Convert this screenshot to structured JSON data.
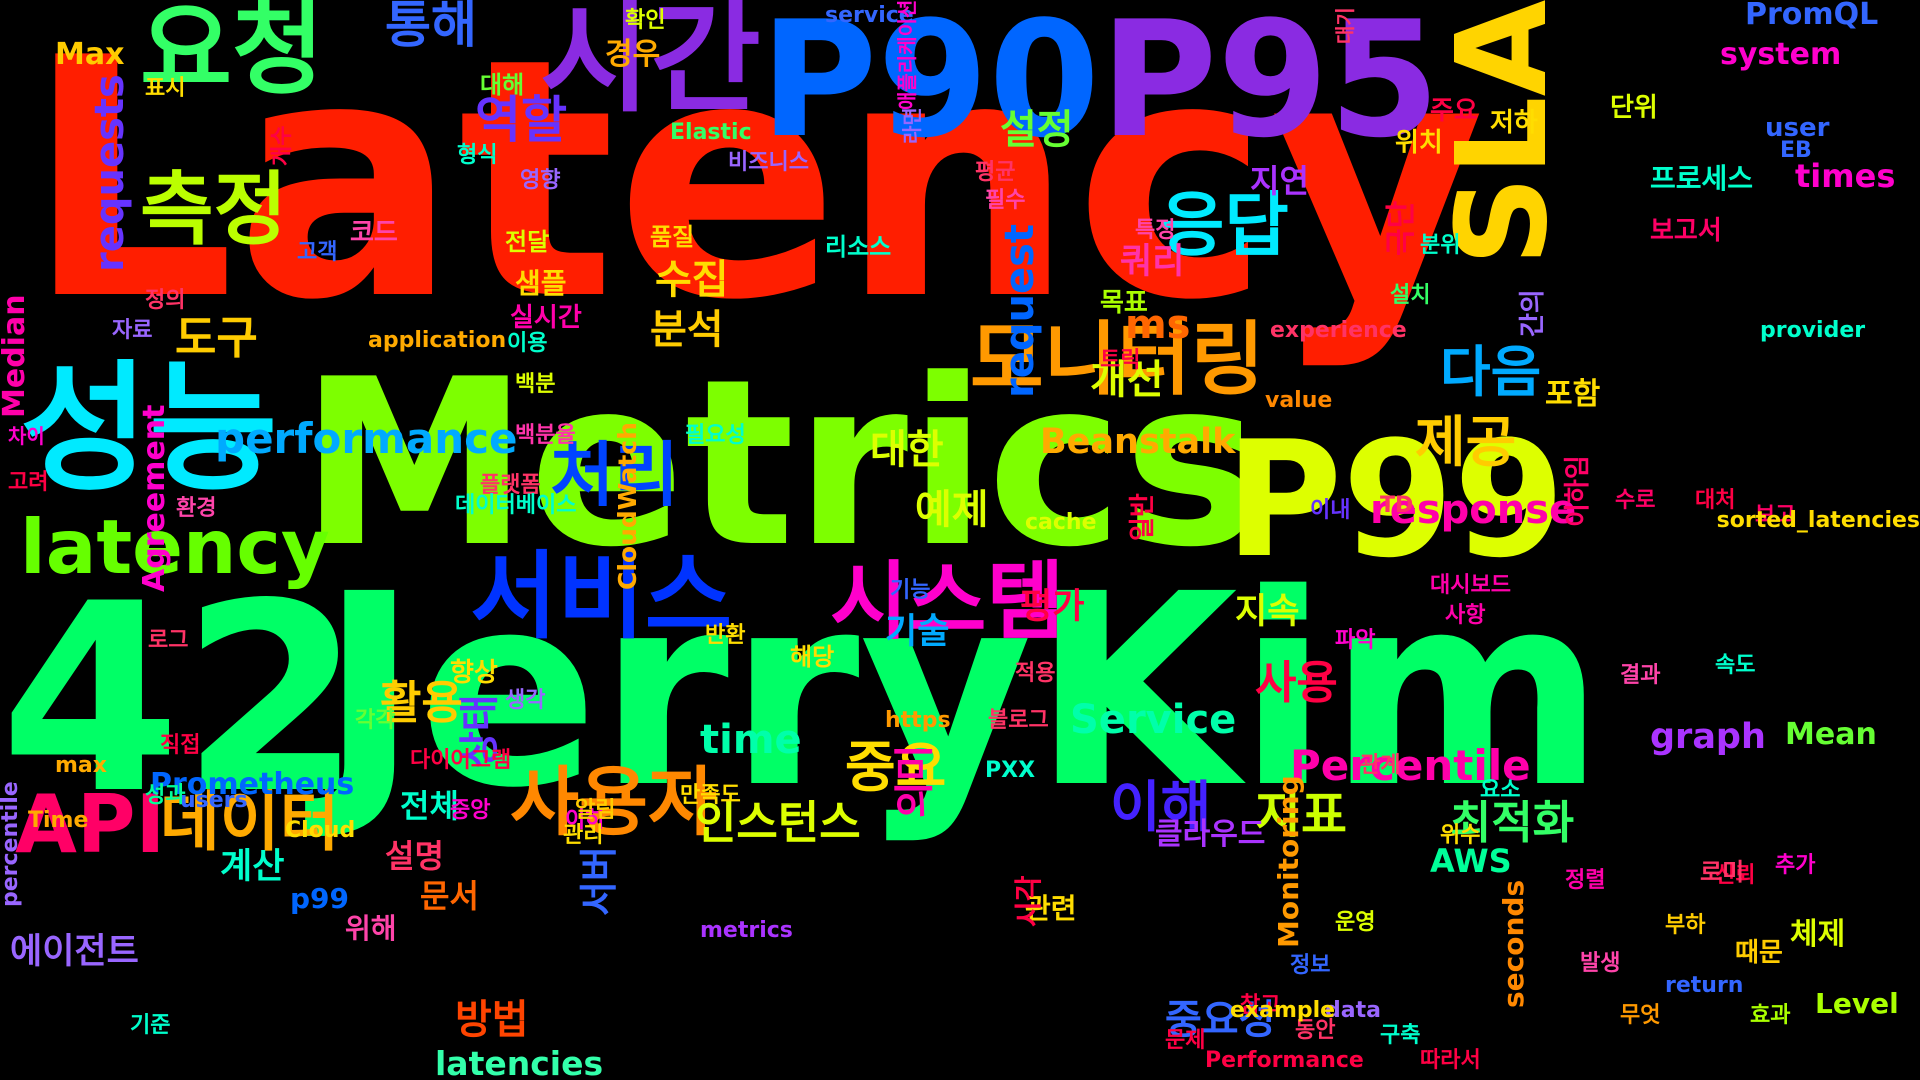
{
  "words": [
    {
      "text": "Latency",
      "color": "#ff1e00"
    },
    {
      "text": "Metrics",
      "color": "#7dff00"
    },
    {
      "text": "42",
      "color": "#00ff66"
    },
    {
      "text": "JerryKim",
      "color": "#00ff66"
    },
    {
      "text": "P90",
      "color": "#0066ff"
    },
    {
      "text": "P95",
      "color": "#8a2be2"
    },
    {
      "text": "P99",
      "color": "#ddff00"
    },
    {
      "text": "SLA",
      "color": "#ffd400"
    },
    {
      "text": "성능",
      "color": "#00eaff"
    },
    {
      "text": "요청",
      "color": "#33ff66"
    },
    {
      "text": "시간",
      "color": "#8a2be2"
    },
    {
      "text": "latency",
      "color": "#66ff00"
    },
    {
      "text": "모니터링",
      "color": "#ff9900"
    },
    {
      "text": "측정",
      "color": "#bbff00"
    },
    {
      "text": "응답",
      "color": "#00eaff"
    },
    {
      "text": "서비스",
      "color": "#0033ff"
    },
    {
      "text": "시스템",
      "color": "#ff00cc"
    },
    {
      "text": "사용자",
      "color": "#ff8800"
    },
    {
      "text": "데이터",
      "color": "#ffaa00"
    },
    {
      "text": "API",
      "color": "#ff0066"
    },
    {
      "text": "처리",
      "color": "#0044ff"
    },
    {
      "text": "다음",
      "color": "#00aaff"
    },
    {
      "text": "제공",
      "color": "#ffcc00"
    },
    {
      "text": "통해",
      "color": "#3366ff"
    },
    {
      "text": "performance",
      "color": "#00aaff"
    },
    {
      "text": "requests",
      "color": "#6633ff"
    },
    {
      "text": "response",
      "color": "#ff00aa"
    },
    {
      "text": "Percentile",
      "color": "#ff00aa"
    },
    {
      "text": "이해",
      "color": "#4422ff"
    },
    {
      "text": "지표",
      "color": "#ccff00"
    },
    {
      "text": "최적화",
      "color": "#33ff66"
    },
    {
      "text": "인스턴스",
      "color": "#ddff00"
    },
    {
      "text": "중요",
      "color": "#ffdd00"
    },
    {
      "text": "상태",
      "color": "#6633ff"
    },
    {
      "text": "의미",
      "color": "#ff00aa"
    },
    {
      "text": "Service",
      "color": "#00ffaa"
    },
    {
      "text": "time",
      "color": "#00ffaa"
    },
    {
      "text": "사용",
      "color": "#ff0044"
    },
    {
      "text": "활용",
      "color": "#ffcc00"
    },
    {
      "text": "역할",
      "color": "#6633ff"
    },
    {
      "text": "설정",
      "color": "#66ff33"
    },
    {
      "text": "수집",
      "color": "#ffdd00"
    },
    {
      "text": "분석",
      "color": "#ffcc00"
    },
    {
      "text": "도구",
      "color": "#ffcc00"
    },
    {
      "text": "대한",
      "color": "#ddff00"
    },
    {
      "text": "예제",
      "color": "#ddff00"
    },
    {
      "text": "개선",
      "color": "#ddff00"
    },
    {
      "text": "지연",
      "color": "#aa33ff"
    },
    {
      "text": "쿼리",
      "color": "#ff33aa"
    },
    {
      "text": "ms",
      "color": "#ff6600"
    },
    {
      "text": "request",
      "color": "#0066ff"
    },
    {
      "text": "Beanstalk",
      "color": "#ffaa00"
    },
    {
      "text": "중요성",
      "color": "#3366ff"
    },
    {
      "text": "방법",
      "color": "#ff4400"
    },
    {
      "text": "서버",
      "color": "#3366ff"
    },
    {
      "text": "latencies",
      "color": "#33ffaa"
    },
    {
      "text": "seconds",
      "color": "#ff8800"
    },
    {
      "text": "Monitoring",
      "color": "#ff9900"
    },
    {
      "text": "CloudWatch",
      "color": "#ffaa00"
    },
    {
      "text": "Agreement",
      "color": "#ff00cc"
    },
    {
      "text": "계산",
      "color": "#00ffcc"
    },
    {
      "text": "에이전트",
      "color": "#9966ff"
    },
    {
      "text": "전체",
      "color": "#00ffcc"
    },
    {
      "text": "문서",
      "color": "#ff6600"
    },
    {
      "text": "평가",
      "color": "#ff0044"
    },
    {
      "text": "기술",
      "color": "#00aaff"
    },
    {
      "text": "지속",
      "color": "#ddff00"
    },
    {
      "text": "graph",
      "color": "#aa33ff"
    },
    {
      "text": "Mean",
      "color": "#66ff33"
    },
    {
      "text": "Median",
      "color": "#ff00aa"
    },
    {
      "text": "Prometheus",
      "color": "#0066ff"
    },
    {
      "text": "AWS",
      "color": "#00ff99"
    },
    {
      "text": "Level",
      "color": "#aaff00"
    },
    {
      "text": "PromQL",
      "color": "#3366ff"
    },
    {
      "text": "system",
      "color": "#ff00cc"
    },
    {
      "text": "times",
      "color": "#ff00cc"
    },
    {
      "text": "Max",
      "color": "#ffcc00"
    },
    {
      "text": "경우",
      "color": "#ffaa00"
    },
    {
      "text": "확인",
      "color": "#ddff00"
    },
    {
      "text": "service",
      "color": "#3366ff"
    },
    {
      "text": "대해",
      "color": "#66ff33"
    },
    {
      "text": "표시",
      "color": "#ffdd00"
    },
    {
      "text": "Elastic",
      "color": "#33ff66"
    },
    {
      "text": "형식",
      "color": "#00ffcc"
    },
    {
      "text": "영향",
      "color": "#9966ff"
    },
    {
      "text": "비즈니스",
      "color": "#9966ff"
    },
    {
      "text": "코드",
      "color": "#ff44aa"
    },
    {
      "text": "전달",
      "color": "#ddff00"
    },
    {
      "text": "품질",
      "color": "#ffdd00"
    },
    {
      "text": "리소스",
      "color": "#00ffcc"
    },
    {
      "text": "샘플",
      "color": "#ffdd00"
    },
    {
      "text": "실시간",
      "color": "#ff00aa"
    },
    {
      "text": "정의",
      "color": "#ff3366"
    },
    {
      "text": "자료",
      "color": "#9966ff"
    },
    {
      "text": "application",
      "color": "#ffaa00"
    },
    {
      "text": "이용",
      "color": "#00ffcc"
    },
    {
      "text": "백분",
      "color": "#ddff00"
    },
    {
      "text": "백분율",
      "color": "#ff33aa"
    },
    {
      "text": "필요성",
      "color": "#00ffcc"
    },
    {
      "text": "플랫폼",
      "color": "#ff3366"
    },
    {
      "text": "데이터베이스",
      "color": "#00ffcc"
    },
    {
      "text": "환경",
      "color": "#ff44aa"
    },
    {
      "text": "고려",
      "color": "#ff0044"
    },
    {
      "text": "차이",
      "color": "#ff00cc"
    },
    {
      "text": "주요",
      "color": "#ff0044"
    },
    {
      "text": "저하",
      "color": "#ffdd00"
    },
    {
      "text": "위치",
      "color": "#ffdd00"
    },
    {
      "text": "단위",
      "color": "#ddff00"
    },
    {
      "text": "user",
      "color": "#3366ff"
    },
    {
      "text": "프로세스",
      "color": "#00ffcc"
    },
    {
      "text": "보고서",
      "color": "#ff0066"
    },
    {
      "text": "평균",
      "color": "#ff3366"
    },
    {
      "text": "필수",
      "color": "#ff44aa"
    },
    {
      "text": "특정",
      "color": "#ff44aa"
    },
    {
      "text": "분위",
      "color": "#00ffcc"
    },
    {
      "text": "설치",
      "color": "#33ff66"
    },
    {
      "text": "목표",
      "color": "#aaff00"
    },
    {
      "text": "experience",
      "color": "#ff3366"
    },
    {
      "text": "트릭",
      "color": "#ff0044"
    },
    {
      "text": "value",
      "color": "#ff8800"
    },
    {
      "text": "간의",
      "color": "#9966ff"
    },
    {
      "text": "provider",
      "color": "#00ffcc"
    },
    {
      "text": "포함",
      "color": "#ffdd00"
    },
    {
      "text": "대처",
      "color": "#ff0044"
    },
    {
      "text": "TD",
      "color": "#ff3366"
    },
    {
      "text": "이내",
      "color": "#6633ff"
    },
    {
      "text": "cache",
      "color": "#ddff00"
    },
    {
      "text": "기능",
      "color": "#3366ff"
    },
    {
      "text": "반환",
      "color": "#ffdd00"
    },
    {
      "text": "파악",
      "color": "#ff00cc"
    },
    {
      "text": "결과",
      "color": "#ff44aa"
    },
    {
      "text": "속도",
      "color": "#00ffcc"
    },
    {
      "text": "적용",
      "color": "#ff3366"
    },
    {
      "text": "대시보드",
      "color": "#ff00aa"
    },
    {
      "text": "사항",
      "color": "#ff00aa"
    },
    {
      "text": "향상",
      "color": "#ffdd00"
    },
    {
      "text": "로그",
      "color": "#ff3366"
    },
    {
      "text": "생각",
      "color": "#9966ff"
    },
    {
      "text": "https",
      "color": "#ff9900"
    },
    {
      "text": "블로그",
      "color": "#ff3366"
    },
    {
      "text": "직접",
      "color": "#ff0044"
    },
    {
      "text": "users",
      "color": "#3366ff"
    },
    {
      "text": "각각",
      "color": "#66ff33"
    },
    {
      "text": "다이어그램",
      "color": "#ff0044"
    },
    {
      "text": "관계",
      "color": "#ff3366"
    },
    {
      "text": "PXX",
      "color": "#00ffcc"
    },
    {
      "text": "만족도",
      "color": "#ffdd00"
    },
    {
      "text": "성과",
      "color": "#00ff99"
    },
    {
      "text": "Cloud",
      "color": "#ffdd00"
    },
    {
      "text": "중앙",
      "color": "#ff00cc"
    },
    {
      "text": "이하",
      "color": "#ff00cc"
    },
    {
      "text": "max",
      "color": "#ffaa00"
    },
    {
      "text": "Time",
      "color": "#ffaa00"
    },
    {
      "text": "알림",
      "color": "#ffcc00"
    },
    {
      "text": "관리",
      "color": "#ffdd00"
    },
    {
      "text": "설명",
      "color": "#ff3366"
    },
    {
      "text": "클라우드",
      "color": "#aa33ff"
    },
    {
      "text": "요소",
      "color": "#00ffcc"
    },
    {
      "text": "위수",
      "color": "#ffdd00"
    },
    {
      "text": "추가",
      "color": "#ff00cc"
    },
    {
      "text": "신뢰",
      "color": "#ff0044"
    },
    {
      "text": "정렬",
      "color": "#ff00aa"
    },
    {
      "text": "관련",
      "color": "#ffdd00"
    },
    {
      "text": "시각",
      "color": "#ff0044"
    },
    {
      "text": "p99",
      "color": "#0066ff"
    },
    {
      "text": "위해",
      "color": "#ff44aa"
    },
    {
      "text": "metrics",
      "color": "#aa33ff"
    },
    {
      "text": "운영",
      "color": "#ddff00"
    },
    {
      "text": "부하",
      "color": "#ffcc00"
    },
    {
      "text": "발생",
      "color": "#ff44aa"
    },
    {
      "text": "정보",
      "color": "#3366ff"
    },
    {
      "text": "참고",
      "color": "#ff0044"
    },
    {
      "text": "동안",
      "color": "#ff3366"
    },
    {
      "text": "기준",
      "color": "#00ffcc"
    },
    {
      "text": "때문",
      "color": "#ffcc00"
    },
    {
      "text": "무엇",
      "color": "#ff9900"
    },
    {
      "text": "효과",
      "color": "#aaff00"
    },
    {
      "text": "구축",
      "color": "#00ffcc"
    },
    {
      "text": "Performance",
      "color": "#ff0044"
    },
    {
      "text": "data",
      "color": "#9966ff"
    },
    {
      "text": "example",
      "color": "#ffdd00"
    },
    {
      "text": "문제",
      "color": "#ff0044"
    },
    {
      "text": "따라서",
      "color": "#ff0044"
    },
    {
      "text": "return",
      "color": "#3366ff"
    },
    {
      "text": "이하임",
      "color": "#ff0066"
    },
    {
      "text": "수로",
      "color": "#ff0066"
    },
    {
      "text": "보고",
      "color": "#ff0066"
    },
    {
      "text": "sorted_latencies",
      "color": "#ffdd00"
    },
    {
      "text": "percentile",
      "color": "#9966ff"
    },
    {
      "text": "개수",
      "color": "#ff0044"
    },
    {
      "text": "고객",
      "color": "#3366ff"
    },
    {
      "text": "극단",
      "color": "#ff0044"
    },
    {
      "text": "EB",
      "color": "#3366ff"
    },
    {
      "text": "대기",
      "color": "#ff3366"
    },
    {
      "text": "애플리케이션",
      "color": "#ff00cc"
    },
    {
      "text": "일반",
      "color": "#ff0044"
    },
    {
      "text": "체제",
      "color": "#ddff00"
    },
    {
      "text": "로미",
      "color": "#ff3366"
    },
    {
      "text": "해당",
      "color": "#ffdd00"
    },
    {
      "text": "라면",
      "color": "#9966ff"
    }
  ]
}
